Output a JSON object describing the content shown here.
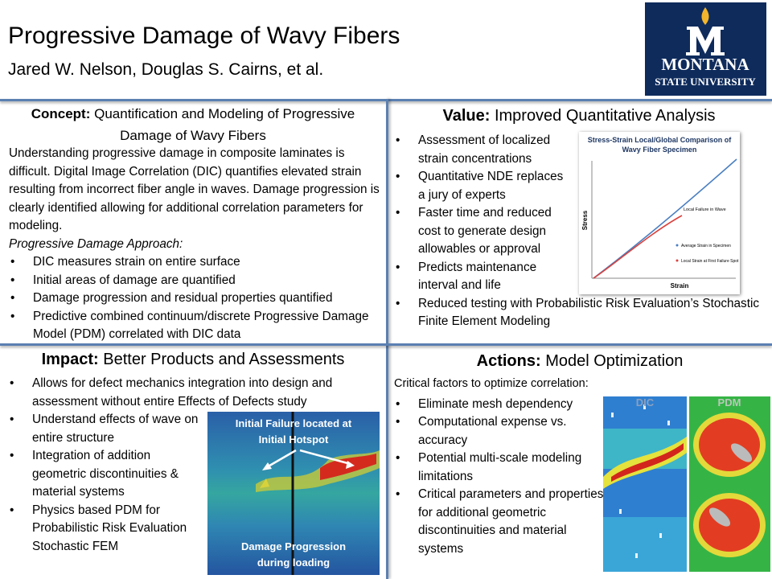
{
  "header": {
    "title": "Progressive Damage of Wavy Fibers",
    "authors": "Jared W. Nelson, Douglas S. Cairns, et al.",
    "logo": {
      "line1": "MONTANA",
      "line2": "STATE UNIVERSITY"
    }
  },
  "concept": {
    "heading_bold": "Concept:",
    "heading_rest": "Quantification and Modeling of Progressive Damage of Wavy Fibers",
    "paragraph": "Understanding progressive damage in composite laminates is difficult.  Digital Image Correlation (DIC) quantifies elevated strain resulting from incorrect fiber angle in waves. Damage progression is clearly identified allowing for additional correlation parameters for modeling.",
    "approach_title": "Progressive Damage Approach:",
    "bullets": [
      "DIC measures strain on entire surface",
      "Initial areas of damage are quantified",
      "Damage progression and residual properties quantified",
      "Predictive combined continuum/discrete Progressive Damage Model (PDM) correlated with DIC data"
    ]
  },
  "value": {
    "heading_bold": "Value:",
    "heading_rest": "Improved Quantitative Analysis",
    "bullets": [
      "Assessment of localized strain concentrations",
      "Quantitative NDE replaces a jury of experts",
      "Faster time and reduced cost to generate design allowables or approval",
      "Predicts maintenance interval and life",
      "Reduced testing with Probabilistic Risk Evaluation’s Stochastic Finite Element Modeling"
    ],
    "figure": {
      "title": "Stress-Strain Local/Global Comparison of Wavy Fiber Specimen",
      "y_label": "Stress",
      "x_label": "Strain",
      "annotation": "Local Failure in Wave",
      "legend": [
        "Average Strain in Specimen",
        "Local Strain at First Failure Spot"
      ]
    }
  },
  "impact": {
    "heading_bold": "Impact:",
    "heading_rest": "Better Products and Assessments",
    "bullets": [
      "Allows for defect mechanics integration into design and assessment without entire Effects of Defects study",
      "Understand effects of wave on entire structure",
      "Integration of addition geometric discontinuities & material systems",
      "Physics based PDM for Probabilistic Risk Evaluation Stochastic FEM"
    ],
    "image_captions": [
      "Initial Failure located at Initial Hotspot",
      "Damage Progression during loading"
    ]
  },
  "actions": {
    "heading_bold": "Actions:",
    "heading_rest": "Model Optimization",
    "intro": "Critical factors to optimize correlation:",
    "bullets": [
      "Eliminate mesh dependency",
      "Computational expense vs. accuracy",
      "Potential multi-scale modeling limitations",
      "Critical parameters and properties for additional geometric discontinuities and material systems"
    ],
    "image_labels": [
      "DIC",
      "PDM"
    ]
  }
}
